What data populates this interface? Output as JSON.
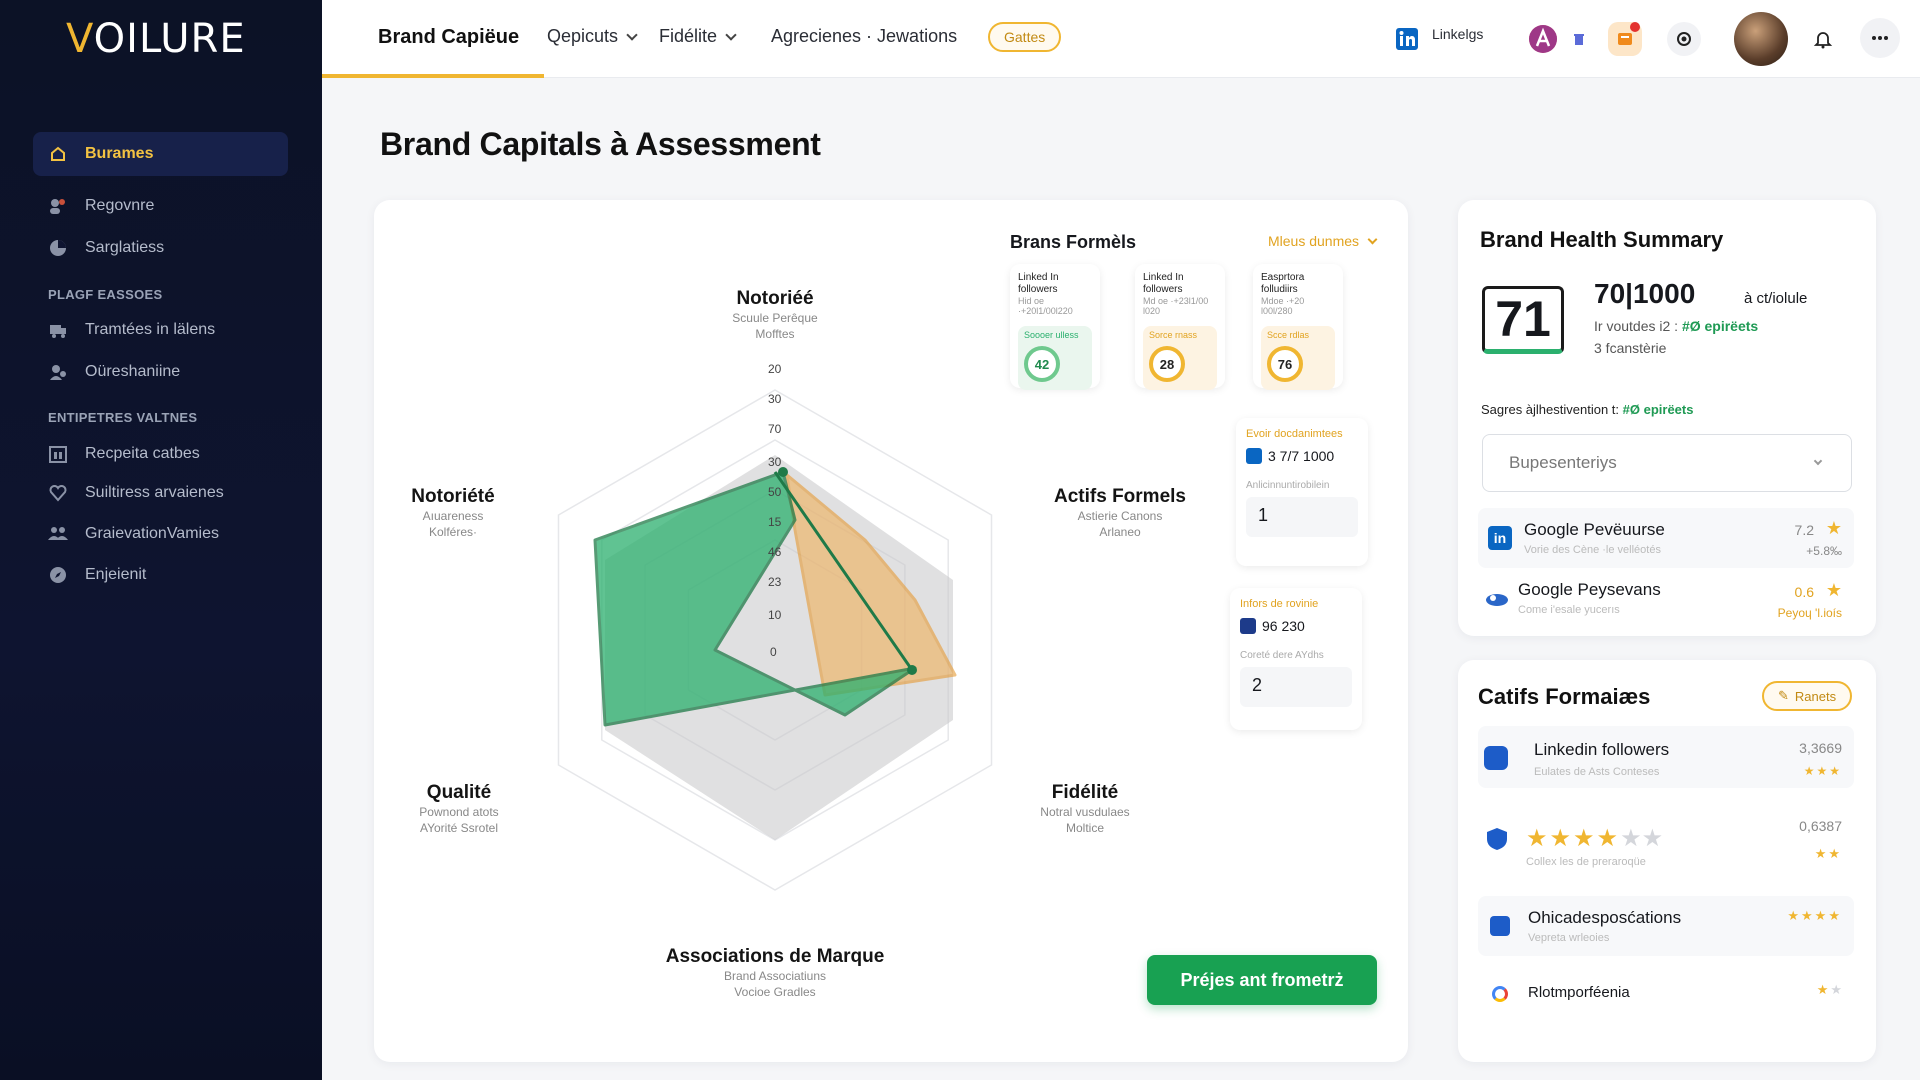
{
  "brand": {
    "logo": "VOILURE"
  },
  "sidebar": {
    "items": [
      {
        "label": "Burames"
      },
      {
        "label": "Regovnre"
      },
      {
        "label": "Sarglatiess"
      },
      {
        "label": "Tramtées in lälens"
      },
      {
        "label": "Oüreshaniine"
      },
      {
        "label": "Recpeita catbes"
      },
      {
        "label": "Suiltiress arvaienes"
      },
      {
        "label": "GraievationVamies"
      },
      {
        "label": "Enjeienit"
      }
    ],
    "sections": [
      "PLAGF EASSOES",
      "ENTIPETRES VALTNES"
    ]
  },
  "topbar": {
    "brand": "Brand Capiëue",
    "menu1": "Qepicuts",
    "menu2": "Fidélite",
    "menu3": "Agrecienes · Jewations",
    "pill": "Gattes",
    "linkedin": "Linkelgs"
  },
  "page": {
    "title": "Brand Capitals à Assessment"
  },
  "radar": {
    "top": {
      "title": "Notoriéé",
      "sub1": "Scuule Perêque",
      "sub2": "Mofftes"
    },
    "left": {
      "title": "Notoriété",
      "sub1": "Aıuareness",
      "sub2": "Kolféres·"
    },
    "right": {
      "title": "Actifs Formels",
      "sub1": "Astierie Canons",
      "sub2": "Arlaneo"
    },
    "bottomleft": {
      "title": "Qualité",
      "sub1": "Pownond atots",
      "sub2": "AYorité Ssrotel"
    },
    "bottomright": {
      "title": "Fidélité",
      "sub1": "Notral vusdulaes",
      "sub2": "Moltice"
    },
    "bottom": {
      "title": "Associations de Marque",
      "sub1": "Brand Associatiuns",
      "sub2": "Vocioe Gradles"
    },
    "ticks": [
      "20",
      "30",
      "70",
      "30",
      "50",
      "15",
      "46",
      "23",
      "10",
      "0"
    ],
    "colors": {
      "green": "#2bb06e",
      "orange": "#f0b05a",
      "gray": "#c7c7c9"
    }
  },
  "brans": {
    "title": "Brans Formèls",
    "dropdown": "Mleus dunmes",
    "cards": [
      {
        "head": "Linked In followers",
        "sub": "Hid oe ·+20Ɩ1/00Ɩ220",
        "label": "Soooer ulless",
        "value": "42"
      },
      {
        "head": "Linked In followers",
        "sub": "Md oe ·+23Ɩ1/00 Ɩ020",
        "label": "Sorce rnass",
        "value": "28"
      },
      {
        "head": "Easprtora folludiirs",
        "sub": "Mdoe ·+20 Ɩ00Ɩ/280",
        "label": "Scce rdlas",
        "value": "76"
      }
    ]
  },
  "sidecards": {
    "a": {
      "title": "Evoir docdanimtees",
      "stat": "3 7/7 1000",
      "label": "Anlicinnuntirobilein",
      "value": "1"
    },
    "b": {
      "title": "Infors de rovinie",
      "stat": "96 230",
      "label": "Coreté dere AYdhs",
      "value": "2"
    }
  },
  "action": {
    "button": "Préjes ant frometrż"
  },
  "health": {
    "title": "Brand Health Summary",
    "score": "71",
    "big": "70|1000",
    "unit": "à ct/iolule",
    "line1": "Ir voutdes i2 :",
    "tag1": "#Ø epirëets",
    "line2": "3 fcanstèrie",
    "sagres": "Sagres àjlhestivention t:",
    "tag2": "#Ø epirëets",
    "select": "Bupesenteriys",
    "rows": [
      {
        "name": "Google Pevëuurse",
        "sub": "Vorie des Cène ·le velléotés",
        "value": "7.2",
        "delta": "+5.8‰"
      },
      {
        "name": "Google Peysevans",
        "sub": "Come i'esale yucerıs",
        "value": "0.6",
        "delta": "Peyoɥ 'l.ioís"
      }
    ]
  },
  "catifs": {
    "title": "Catifs Formaiæs",
    "pill": "Ranets",
    "rows": [
      {
        "name": "Linkedin followers",
        "sub": "Eulates de Asts Conteses",
        "value": "3,3669"
      },
      {
        "name": "",
        "sub": "Collex les de preraroqüe",
        "value": "0,6387"
      },
      {
        "name": "Ohicadesposćations",
        "sub": "Vepreta wrleoies",
        "value": ""
      },
      {
        "name": "Rlotmporféenia",
        "sub": "",
        "value": ""
      }
    ]
  }
}
